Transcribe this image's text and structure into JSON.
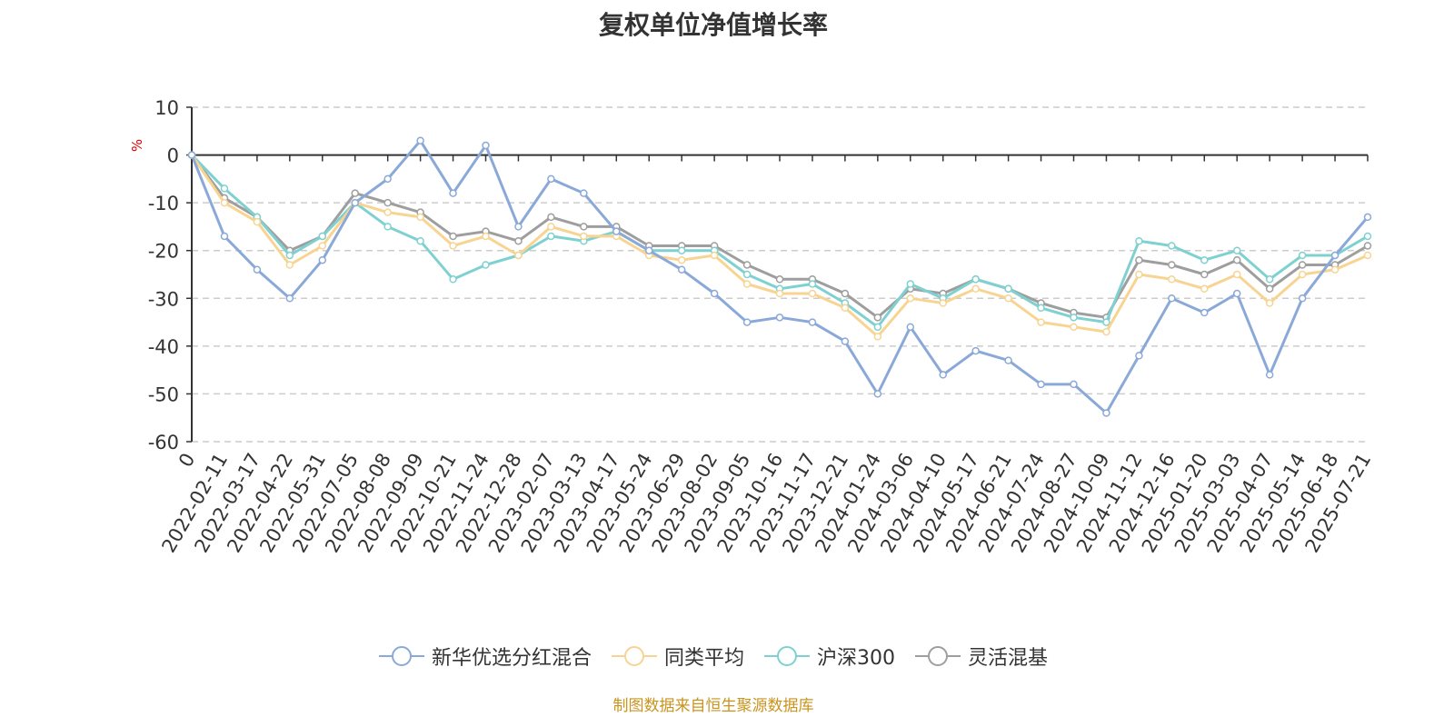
{
  "chart_data": {
    "type": "line",
    "title": "复权单位净值增长率",
    "ylabel": "%",
    "ylim": [
      -60,
      10
    ],
    "yticks": [
      10,
      0,
      -10,
      -20,
      -30,
      -40,
      -50,
      -60
    ],
    "grid": true,
    "legend_position": "bottom",
    "categories": [
      "0",
      "2022-02-11",
      "2022-03-17",
      "2022-04-22",
      "2022-05-31",
      "2022-07-05",
      "2022-08-08",
      "2022-09-09",
      "2022-10-21",
      "2022-11-24",
      "2022-12-28",
      "2023-02-07",
      "2023-03-13",
      "2023-04-17",
      "2023-05-24",
      "2023-06-29",
      "2023-08-02",
      "2023-09-05",
      "2023-10-16",
      "2023-11-17",
      "2023-12-21",
      "2024-01-24",
      "2024-03-06",
      "2024-04-10",
      "2024-05-17",
      "2024-06-21",
      "2024-07-24",
      "2024-08-27",
      "2024-10-09",
      "2024-11-12",
      "2024-12-16",
      "2025-01-20",
      "2025-03-03",
      "2025-04-07",
      "2025-05-14",
      "2025-06-18",
      "2025-07-21"
    ],
    "series": [
      {
        "name": "新华优选分红混合",
        "color": "#8aa9d8",
        "values": [
          0,
          -17,
          -24,
          -30,
          -22,
          -10,
          -5,
          3,
          -8,
          2,
          -15,
          -5,
          -8,
          -16,
          -20,
          -24,
          -29,
          -35,
          -34,
          -35,
          -39,
          -50,
          -36,
          -46,
          -41,
          -43,
          -48,
          -48,
          -54,
          -42,
          -30,
          -33,
          -29,
          -46,
          -30,
          -21,
          -13
        ]
      },
      {
        "name": "同类平均",
        "color": "#f7d492",
        "values": [
          0,
          -10,
          -14,
          -23,
          -19,
          -10,
          -12,
          -13,
          -19,
          -17,
          -21,
          -15,
          -17,
          -17,
          -21,
          -22,
          -21,
          -27,
          -29,
          -29,
          -32,
          -38,
          -30,
          -31,
          -28,
          -30,
          -35,
          -36,
          -37,
          -25,
          -26,
          -28,
          -25,
          -31,
          -25,
          -24,
          -21
        ]
      },
      {
        "name": "沪深300",
        "color": "#7fd1d1",
        "values": [
          0,
          -7,
          -13,
          -21,
          -17,
          -10,
          -15,
          -18,
          -26,
          -23,
          -21,
          -17,
          -18,
          -16,
          -20,
          -20,
          -20,
          -25,
          -28,
          -27,
          -31,
          -36,
          -27,
          -30,
          -26,
          -28,
          -32,
          -34,
          -35,
          -18,
          -19,
          -22,
          -20,
          -26,
          -21,
          -21,
          -17
        ]
      },
      {
        "name": "灵活混基",
        "color": "#9e9e9e",
        "values": [
          0,
          -9,
          -13,
          -20,
          -17,
          -8,
          -10,
          -12,
          -17,
          -16,
          -18,
          -13,
          -15,
          -15,
          -19,
          -19,
          -19,
          -23,
          -26,
          -26,
          -29,
          -34,
          -28,
          -29,
          -26,
          -28,
          -31,
          -33,
          -34,
          -22,
          -23,
          -25,
          -22,
          -28,
          -23,
          -23,
          -19
        ]
      }
    ]
  },
  "legend": {
    "items": [
      "新华优选分红混合",
      "同类平均",
      "沪深300",
      "灵活混基"
    ]
  },
  "footer": {
    "source": "制图数据来自恒生聚源数据库"
  }
}
